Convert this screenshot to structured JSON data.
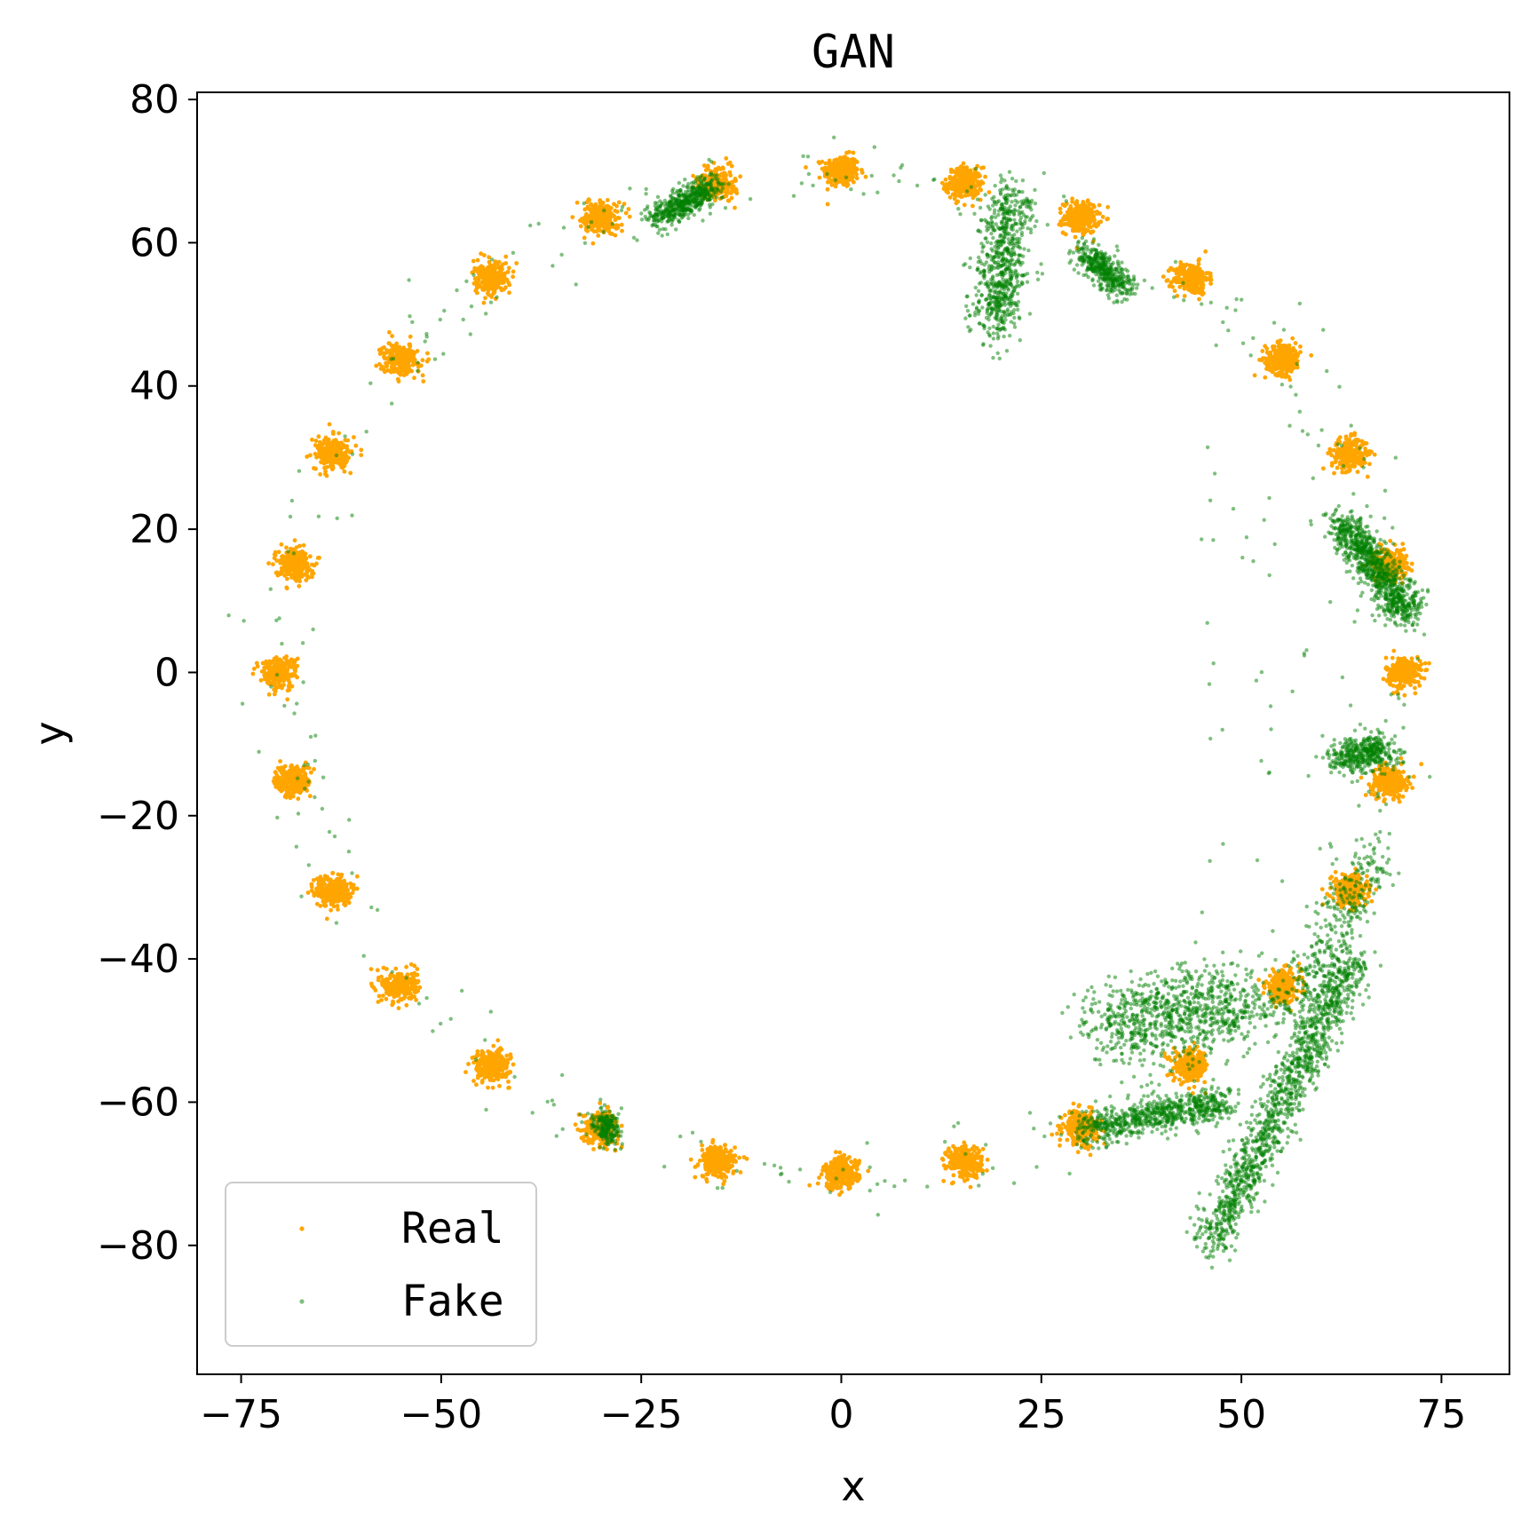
{
  "chart_data": {
    "type": "scatter",
    "title": "GAN",
    "xlabel": "x",
    "ylabel": "y",
    "xlim": [
      -80.5,
      83.5
    ],
    "ylim": [
      -98,
      81
    ],
    "xticks": [
      -75,
      -50,
      -25,
      0,
      25,
      50,
      75
    ],
    "yticks": [
      -80,
      -60,
      -40,
      -20,
      0,
      20,
      40,
      60,
      80
    ],
    "grid": false,
    "legend_position": "bottom-left",
    "series": [
      {
        "name": "Real",
        "color": "#ffa500",
        "kind": "clusters",
        "centers": [
          [
            0,
            70
          ],
          [
            15.4,
            68.3
          ],
          [
            30,
            63.5
          ],
          [
            43.7,
            55
          ],
          [
            55.2,
            43.8
          ],
          [
            63.5,
            30.5
          ],
          [
            68.5,
            15.2
          ],
          [
            70.3,
            0
          ],
          [
            68.5,
            -15.2
          ],
          [
            63.5,
            -30.5
          ],
          [
            55.2,
            -43.8
          ],
          [
            43.7,
            -55
          ],
          [
            30,
            -63.5
          ],
          [
            15.4,
            -68.3
          ],
          [
            0,
            -70
          ],
          [
            -15.4,
            -68.3
          ],
          [
            -30,
            -63.5
          ],
          [
            -43.7,
            -55
          ],
          [
            -55.2,
            -43.8
          ],
          [
            -63.5,
            -30.5
          ],
          [
            -68.5,
            15.2
          ],
          [
            -70.3,
            0
          ],
          [
            -68.5,
            -15.2
          ],
          [
            -63.5,
            30.5
          ],
          [
            -55.2,
            43.8
          ],
          [
            -43.7,
            55
          ],
          [
            -30,
            63.5
          ],
          [
            -15.4,
            68.3
          ]
        ],
        "points_per_cluster": 260,
        "spread": 1.1
      },
      {
        "name": "Fake",
        "color": "#008000",
        "kind": "mode-collapse",
        "dense_regions": [
          {
            "from": [
              -23,
              63.5
            ],
            "to": [
              -16,
              68
            ],
            "count": 500,
            "spread": 1.0
          },
          {
            "from": [
              19,
              48
            ],
            "to": [
              21,
              67
            ],
            "count": 700,
            "spread": 1.6
          },
          {
            "from": [
              30.5,
              58.5
            ],
            "to": [
              35.5,
              53.5
            ],
            "count": 400,
            "spread": 1.0
          },
          {
            "from": [
              62.5,
              21
            ],
            "to": [
              71,
              8
            ],
            "count": 900,
            "spread": 1.2
          },
          {
            "from": [
              62,
              -12
            ],
            "to": [
              68,
              -11
            ],
            "count": 400,
            "spread": 1.2
          },
          {
            "from": [
              -30,
              -62
            ],
            "to": [
              -29,
              -65
            ],
            "count": 200,
            "spread": 0.8
          },
          {
            "from": [
              33,
              -49
            ],
            "to": [
              52,
              -46
            ],
            "count": 900,
            "spread": 3.0
          },
          {
            "from": [
              30,
              -64
            ],
            "to": [
              48,
              -60
            ],
            "count": 700,
            "spread": 1.2
          },
          {
            "from": [
              46,
              -80
            ],
            "to": [
              64,
              -40
            ],
            "count": 1300,
            "spread": 1.4
          },
          {
            "from": [
              56,
              -48
            ],
            "to": [
              67,
              -25
            ],
            "count": 300,
            "spread": 1.5
          }
        ],
        "sparse_points": 350
      }
    ]
  }
}
